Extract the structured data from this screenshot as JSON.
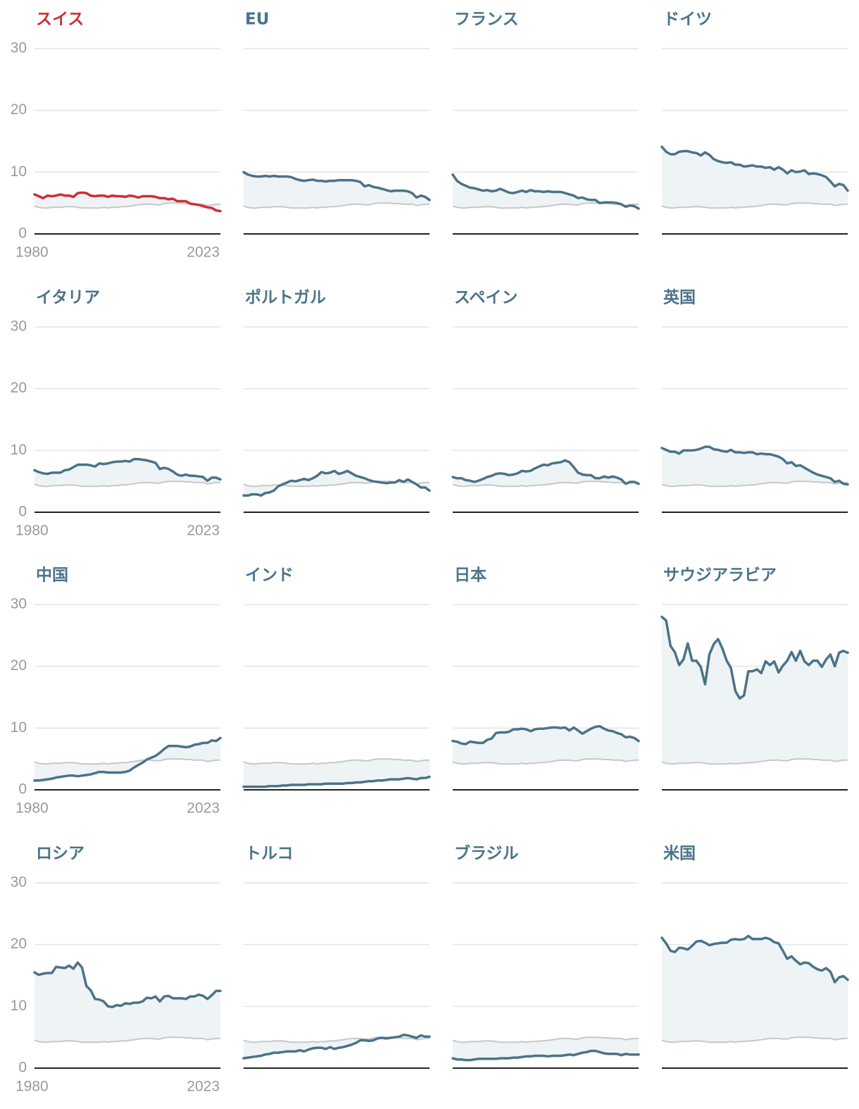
{
  "chart_data": {
    "type": "line",
    "x_range": [
      1980,
      2023
    ],
    "x_tick_labels": [
      "1980",
      "2023"
    ],
    "ylim": [
      0,
      30
    ],
    "y_ticks": [
      0,
      10,
      20,
      30
    ],
    "grid": true,
    "colors": {
      "highlight": "#cc2f36",
      "series": "#4b7389",
      "reference": "#c8c8c8",
      "fill": "#eef3f5",
      "gridline": "#e4e4e4",
      "baseline": "#222222",
      "tick_text": "#9a9a9a"
    },
    "reference_values": [
      4.5,
      4.3,
      4.2,
      4.2,
      4.3,
      4.3,
      4.3,
      4.4,
      4.4,
      4.4,
      4.3,
      4.2,
      4.2,
      4.2,
      4.2,
      4.2,
      4.3,
      4.2,
      4.3,
      4.3,
      4.4,
      4.4,
      4.5,
      4.6,
      4.7,
      4.8,
      4.8,
      4.8,
      4.7,
      4.7,
      4.9,
      5.0,
      5.0,
      5.0,
      5.0,
      4.9,
      4.9,
      4.8,
      4.8,
      4.8,
      4.6,
      4.7,
      4.8,
      4.8
    ],
    "panels": [
      {
        "name": "スイス",
        "highlight": true,
        "show_axis": true,
        "values": [
          6.4,
          6.1,
          5.8,
          6.2,
          6.1,
          6.2,
          6.4,
          6.2,
          6.2,
          6.0,
          6.6,
          6.7,
          6.6,
          6.2,
          6.1,
          6.2,
          6.2,
          6.0,
          6.2,
          6.1,
          6.1,
          6.0,
          6.2,
          6.1,
          5.9,
          6.1,
          6.1,
          6.1,
          6.0,
          5.8,
          5.8,
          5.6,
          5.7,
          5.3,
          5.3,
          5.3,
          4.9,
          4.8,
          4.7,
          4.5,
          4.3,
          4.2,
          3.8,
          3.7
        ]
      },
      {
        "name": "EU",
        "highlight": false,
        "show_axis": false,
        "values": [
          10.0,
          9.6,
          9.4,
          9.3,
          9.3,
          9.4,
          9.3,
          9.4,
          9.3,
          9.3,
          9.3,
          9.2,
          8.9,
          8.7,
          8.6,
          8.7,
          8.8,
          8.6,
          8.6,
          8.5,
          8.6,
          8.6,
          8.7,
          8.7,
          8.7,
          8.7,
          8.6,
          8.4,
          7.7,
          7.9,
          7.6,
          7.5,
          7.3,
          7.1,
          6.9,
          7.0,
          7.0,
          7.0,
          6.9,
          6.6,
          5.9,
          6.2,
          6.0,
          5.5
        ]
      },
      {
        "name": "フランス",
        "highlight": false,
        "show_axis": false,
        "values": [
          9.6,
          8.6,
          8.1,
          7.8,
          7.5,
          7.4,
          7.2,
          7.0,
          7.1,
          6.9,
          7.0,
          7.3,
          7.0,
          6.7,
          6.6,
          6.8,
          7.0,
          6.8,
          7.1,
          6.9,
          6.9,
          6.8,
          6.9,
          6.8,
          6.8,
          6.8,
          6.6,
          6.4,
          6.2,
          5.8,
          5.9,
          5.6,
          5.5,
          5.5,
          5.0,
          5.1,
          5.1,
          5.1,
          5.0,
          4.8,
          4.4,
          4.6,
          4.5,
          4.1
        ]
      },
      {
        "name": "ドイツ",
        "highlight": false,
        "show_axis": false,
        "values": [
          14.1,
          13.3,
          12.9,
          12.9,
          13.3,
          13.4,
          13.4,
          13.2,
          13.1,
          12.7,
          13.2,
          12.8,
          12.1,
          11.8,
          11.6,
          11.5,
          11.6,
          11.2,
          11.2,
          10.9,
          11.0,
          11.1,
          10.9,
          10.9,
          10.7,
          10.8,
          10.4,
          10.8,
          10.4,
          9.8,
          10.3,
          10.0,
          10.1,
          10.3,
          9.7,
          9.8,
          9.7,
          9.5,
          9.2,
          8.5,
          7.7,
          8.1,
          7.9,
          7.0
        ]
      },
      {
        "name": "イタリア",
        "highlight": false,
        "show_axis": true,
        "values": [
          6.8,
          6.5,
          6.3,
          6.2,
          6.4,
          6.4,
          6.4,
          6.8,
          6.9,
          7.3,
          7.7,
          7.7,
          7.7,
          7.6,
          7.4,
          7.9,
          7.8,
          7.9,
          8.1,
          8.2,
          8.2,
          8.3,
          8.2,
          8.6,
          8.6,
          8.5,
          8.4,
          8.2,
          8.0,
          7.0,
          7.2,
          7.0,
          6.6,
          6.1,
          5.9,
          6.1,
          5.9,
          5.9,
          5.8,
          5.7,
          5.1,
          5.6,
          5.6,
          5.3
        ]
      },
      {
        "name": "ポルトガル",
        "highlight": false,
        "show_axis": false,
        "values": [
          2.7,
          2.7,
          2.9,
          2.9,
          2.7,
          3.1,
          3.2,
          3.5,
          4.2,
          4.5,
          4.8,
          5.1,
          5.0,
          5.2,
          5.4,
          5.2,
          5.5,
          5.9,
          6.5,
          6.3,
          6.4,
          6.7,
          6.2,
          6.4,
          6.7,
          6.3,
          5.9,
          5.7,
          5.5,
          5.2,
          5.0,
          4.9,
          4.8,
          4.7,
          4.8,
          4.8,
          5.2,
          4.9,
          5.3,
          4.9,
          4.5,
          4.0,
          4.0,
          3.5
        ]
      },
      {
        "name": "スペイン",
        "highlight": false,
        "show_axis": false,
        "values": [
          5.7,
          5.5,
          5.5,
          5.2,
          5.1,
          4.9,
          5.1,
          5.4,
          5.7,
          5.9,
          6.2,
          6.3,
          6.2,
          6.0,
          6.1,
          6.3,
          6.7,
          6.6,
          6.7,
          7.1,
          7.4,
          7.7,
          7.6,
          7.9,
          8.0,
          8.1,
          8.4,
          8.1,
          7.3,
          6.4,
          6.1,
          6.0,
          6.0,
          5.5,
          5.5,
          5.8,
          5.6,
          5.8,
          5.6,
          5.3,
          4.6,
          4.9,
          4.9,
          4.6
        ]
      },
      {
        "name": "英国",
        "highlight": false,
        "show_axis": false,
        "values": [
          10.4,
          10.1,
          9.8,
          9.8,
          9.5,
          10.0,
          10.0,
          10.0,
          10.1,
          10.3,
          10.6,
          10.6,
          10.2,
          10.1,
          9.9,
          9.8,
          10.1,
          9.7,
          9.7,
          9.6,
          9.7,
          9.7,
          9.4,
          9.5,
          9.4,
          9.4,
          9.2,
          9.0,
          8.6,
          7.9,
          8.1,
          7.5,
          7.6,
          7.2,
          6.8,
          6.4,
          6.1,
          5.9,
          5.7,
          5.5,
          4.9,
          5.1,
          4.6,
          4.5
        ]
      },
      {
        "name": "中国",
        "highlight": false,
        "show_axis": true,
        "values": [
          1.5,
          1.5,
          1.6,
          1.7,
          1.8,
          2.0,
          2.1,
          2.2,
          2.3,
          2.3,
          2.2,
          2.3,
          2.4,
          2.5,
          2.7,
          2.9,
          2.9,
          2.8,
          2.8,
          2.8,
          2.8,
          2.9,
          3.1,
          3.6,
          4.0,
          4.4,
          4.9,
          5.2,
          5.5,
          6.0,
          6.6,
          7.1,
          7.1,
          7.1,
          7.0,
          6.9,
          7.0,
          7.3,
          7.4,
          7.6,
          7.6,
          8.0,
          7.9,
          8.4
        ]
      },
      {
        "name": "インド",
        "highlight": false,
        "show_axis": false,
        "values": [
          0.5,
          0.5,
          0.5,
          0.5,
          0.5,
          0.5,
          0.6,
          0.6,
          0.6,
          0.7,
          0.7,
          0.8,
          0.8,
          0.8,
          0.8,
          0.9,
          0.9,
          0.9,
          0.9,
          1.0,
          1.0,
          1.0,
          1.0,
          1.0,
          1.1,
          1.1,
          1.2,
          1.2,
          1.3,
          1.4,
          1.4,
          1.5,
          1.5,
          1.6,
          1.7,
          1.7,
          1.7,
          1.8,
          1.9,
          1.8,
          1.7,
          1.9,
          1.9,
          2.1
        ]
      },
      {
        "name": "日本",
        "highlight": false,
        "show_axis": false,
        "values": [
          7.9,
          7.8,
          7.5,
          7.4,
          7.8,
          7.7,
          7.6,
          7.6,
          8.1,
          8.3,
          9.2,
          9.3,
          9.3,
          9.4,
          9.8,
          9.8,
          9.9,
          9.8,
          9.5,
          9.8,
          9.9,
          9.9,
          10.0,
          10.1,
          10.1,
          10.0,
          10.1,
          9.6,
          10.1,
          9.6,
          9.1,
          9.5,
          9.9,
          10.2,
          10.3,
          9.9,
          9.6,
          9.5,
          9.2,
          9.0,
          8.5,
          8.6,
          8.4,
          7.9
        ]
      },
      {
        "name": "サウジアラビア",
        "highlight": false,
        "show_axis": false,
        "values": [
          28.0,
          27.4,
          23.3,
          22.3,
          20.2,
          21.1,
          23.7,
          20.9,
          20.9,
          19.9,
          17.1,
          21.9,
          23.6,
          24.4,
          22.9,
          20.9,
          19.7,
          16.0,
          14.8,
          15.3,
          19.2,
          19.2,
          19.5,
          18.9,
          20.8,
          20.2,
          20.8,
          19.0,
          20.1,
          20.9,
          22.3,
          20.9,
          22.5,
          20.8,
          20.2,
          20.9,
          20.9,
          19.9,
          21.1,
          21.9,
          20.0,
          22.2,
          22.5,
          22.2
        ]
      },
      {
        "name": "ロシア",
        "highlight": false,
        "show_axis": true,
        "values": [
          15.5,
          15.1,
          15.3,
          15.4,
          15.4,
          16.4,
          16.3,
          16.2,
          16.6,
          16.1,
          17.1,
          16.3,
          13.3,
          12.6,
          11.2,
          11.1,
          10.8,
          10.0,
          9.9,
          10.2,
          10.1,
          10.5,
          10.4,
          10.6,
          10.6,
          10.8,
          11.4,
          11.3,
          11.6,
          10.8,
          11.6,
          11.7,
          11.3,
          11.3,
          11.3,
          11.2,
          11.6,
          11.6,
          11.9,
          11.7,
          11.2,
          11.8,
          12.5,
          12.5
        ]
      },
      {
        "name": "トルコ",
        "highlight": false,
        "show_axis": false,
        "values": [
          1.6,
          1.7,
          1.8,
          1.9,
          2.0,
          2.2,
          2.3,
          2.5,
          2.5,
          2.6,
          2.7,
          2.7,
          2.7,
          2.9,
          2.7,
          3.0,
          3.2,
          3.3,
          3.3,
          3.1,
          3.4,
          3.1,
          3.3,
          3.4,
          3.6,
          3.8,
          4.1,
          4.5,
          4.5,
          4.4,
          4.5,
          4.8,
          4.9,
          4.8,
          4.9,
          5.0,
          5.1,
          5.4,
          5.3,
          5.1,
          4.9,
          5.3,
          5.1,
          5.1
        ]
      },
      {
        "name": "ブラジル",
        "highlight": false,
        "show_axis": false,
        "values": [
          1.6,
          1.4,
          1.4,
          1.3,
          1.3,
          1.4,
          1.5,
          1.5,
          1.5,
          1.5,
          1.5,
          1.6,
          1.6,
          1.6,
          1.7,
          1.7,
          1.8,
          1.9,
          1.9,
          2.0,
          2.0,
          2.0,
          1.9,
          2.0,
          2.0,
          2.0,
          2.1,
          2.2,
          2.1,
          2.3,
          2.5,
          2.6,
          2.8,
          2.8,
          2.6,
          2.4,
          2.3,
          2.3,
          2.3,
          2.1,
          2.3,
          2.2,
          2.2,
          2.2
        ]
      },
      {
        "name": "米国",
        "highlight": false,
        "show_axis": false,
        "values": [
          21.1,
          20.2,
          19.0,
          18.8,
          19.5,
          19.4,
          19.2,
          19.8,
          20.5,
          20.6,
          20.3,
          19.9,
          20.1,
          20.2,
          20.3,
          20.3,
          20.8,
          20.9,
          20.8,
          20.9,
          21.4,
          20.9,
          20.9,
          20.9,
          21.1,
          20.9,
          20.4,
          20.2,
          19.0,
          17.7,
          18.1,
          17.4,
          16.8,
          17.1,
          17.0,
          16.4,
          16.0,
          15.8,
          16.2,
          15.6,
          13.9,
          14.7,
          14.9,
          14.3
        ]
      }
    ]
  }
}
